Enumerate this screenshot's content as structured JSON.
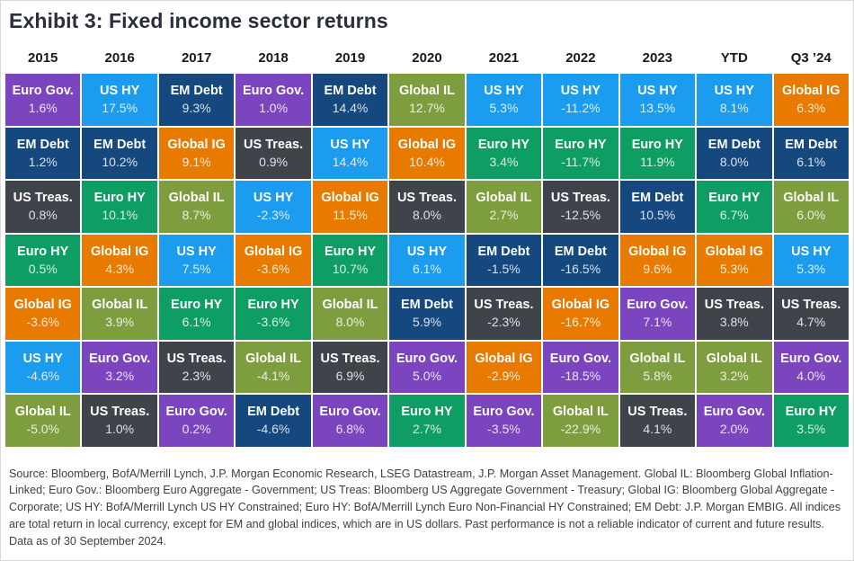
{
  "header": {
    "title": "Exhibit 3: Fixed income sector returns"
  },
  "chart_data": {
    "type": "table",
    "title": "Exhibit 3: Fixed income sector returns",
    "columns": [
      "2015",
      "2016",
      "2017",
      "2018",
      "2019",
      "2020",
      "2021",
      "2022",
      "2023",
      "YTD",
      "Q3 ’24"
    ],
    "legend": {
      "Euro Gov.": "#7a45be",
      "US HY": "#1b9cee",
      "EM Debt": "#14487f",
      "Global IL": "#7e9d3e",
      "Global IG": "#e87a00",
      "US Treas.": "#3f444a",
      "Euro HY": "#0e9e63"
    },
    "rows": [
      [
        {
          "sector": "Euro Gov.",
          "value": "1.6%"
        },
        {
          "sector": "US HY",
          "value": "17.5%"
        },
        {
          "sector": "EM Debt",
          "value": "9.3%"
        },
        {
          "sector": "Euro Gov.",
          "value": "1.0%"
        },
        {
          "sector": "EM Debt",
          "value": "14.4%"
        },
        {
          "sector": "Global IL",
          "value": "12.7%"
        },
        {
          "sector": "US HY",
          "value": "5.3%"
        },
        {
          "sector": "US HY",
          "value": "-11.2%"
        },
        {
          "sector": "US HY",
          "value": "13.5%"
        },
        {
          "sector": "US HY",
          "value": "8.1%"
        },
        {
          "sector": "Global IG",
          "value": "6.3%"
        }
      ],
      [
        {
          "sector": "EM Debt",
          "value": "1.2%"
        },
        {
          "sector": "EM Debt",
          "value": "10.2%"
        },
        {
          "sector": "Global IG",
          "value": "9.1%"
        },
        {
          "sector": "US Treas.",
          "value": "0.9%"
        },
        {
          "sector": "US HY",
          "value": "14.4%"
        },
        {
          "sector": "Global IG",
          "value": "10.4%"
        },
        {
          "sector": "Euro HY",
          "value": "3.4%"
        },
        {
          "sector": "Euro HY",
          "value": "-11.7%"
        },
        {
          "sector": "Euro HY",
          "value": "11.9%"
        },
        {
          "sector": "EM Debt",
          "value": "8.0%"
        },
        {
          "sector": "EM Debt",
          "value": "6.1%"
        }
      ],
      [
        {
          "sector": "US Treas.",
          "value": "0.8%"
        },
        {
          "sector": "Euro HY",
          "value": "10.1%"
        },
        {
          "sector": "Global IL",
          "value": "8.7%"
        },
        {
          "sector": "US HY",
          "value": "-2.3%"
        },
        {
          "sector": "Global IG",
          "value": "11.5%"
        },
        {
          "sector": "US Treas.",
          "value": "8.0%"
        },
        {
          "sector": "Global IL",
          "value": "2.7%"
        },
        {
          "sector": "US Treas.",
          "value": "-12.5%"
        },
        {
          "sector": "EM Debt",
          "value": "10.5%"
        },
        {
          "sector": "Euro HY",
          "value": "6.7%"
        },
        {
          "sector": "Global IL",
          "value": "6.0%"
        }
      ],
      [
        {
          "sector": "Euro HY",
          "value": "0.5%"
        },
        {
          "sector": "Global IG",
          "value": "4.3%"
        },
        {
          "sector": "US HY",
          "value": "7.5%"
        },
        {
          "sector": "Global IG",
          "value": "-3.6%"
        },
        {
          "sector": "Euro HY",
          "value": "10.7%"
        },
        {
          "sector": "US HY",
          "value": "6.1%"
        },
        {
          "sector": "EM Debt",
          "value": "-1.5%"
        },
        {
          "sector": "EM Debt",
          "value": "-16.5%"
        },
        {
          "sector": "Global IG",
          "value": "9.6%"
        },
        {
          "sector": "Global IG",
          "value": "5.3%"
        },
        {
          "sector": "US HY",
          "value": "5.3%"
        }
      ],
      [
        {
          "sector": "Global IG",
          "value": "-3.6%"
        },
        {
          "sector": "Global IL",
          "value": "3.9%"
        },
        {
          "sector": "Euro HY",
          "value": "6.1%"
        },
        {
          "sector": "Euro HY",
          "value": "-3.6%"
        },
        {
          "sector": "Global IL",
          "value": "8.0%"
        },
        {
          "sector": "EM Debt",
          "value": "5.9%"
        },
        {
          "sector": "US Treas.",
          "value": "-2.3%"
        },
        {
          "sector": "Global IG",
          "value": "-16.7%"
        },
        {
          "sector": "Euro Gov.",
          "value": "7.1%"
        },
        {
          "sector": "US Treas.",
          "value": "3.8%"
        },
        {
          "sector": "US Treas.",
          "value": "4.7%"
        }
      ],
      [
        {
          "sector": "US HY",
          "value": "-4.6%"
        },
        {
          "sector": "Euro Gov.",
          "value": "3.2%"
        },
        {
          "sector": "US Treas.",
          "value": "2.3%"
        },
        {
          "sector": "Global IL",
          "value": "-4.1%"
        },
        {
          "sector": "US Treas.",
          "value": "6.9%"
        },
        {
          "sector": "Euro Gov.",
          "value": "5.0%"
        },
        {
          "sector": "Global IG",
          "value": "-2.9%"
        },
        {
          "sector": "Euro Gov.",
          "value": "-18.5%"
        },
        {
          "sector": "Global IL",
          "value": "5.8%"
        },
        {
          "sector": "Global IL",
          "value": "3.2%"
        },
        {
          "sector": "Euro Gov.",
          "value": "4.0%"
        }
      ],
      [
        {
          "sector": "Global IL",
          "value": "-5.0%"
        },
        {
          "sector": "US Treas.",
          "value": "1.0%"
        },
        {
          "sector": "Euro Gov.",
          "value": "0.2%"
        },
        {
          "sector": "EM Debt",
          "value": "-4.6%"
        },
        {
          "sector": "Euro Gov.",
          "value": "6.8%"
        },
        {
          "sector": "Euro HY",
          "value": "2.7%"
        },
        {
          "sector": "Euro Gov.",
          "value": "-3.5%"
        },
        {
          "sector": "Global IL",
          "value": "-22.9%"
        },
        {
          "sector": "US Treas.",
          "value": "4.1%"
        },
        {
          "sector": "Euro Gov.",
          "value": "2.0%"
        },
        {
          "sector": "Euro HY",
          "value": "3.5%"
        }
      ]
    ]
  },
  "footer": {
    "source": "Source: Bloomberg, BofA/Merrill Lynch, J.P. Morgan Economic Research, LSEG Datastream, J.P. Morgan Asset Management. Global IL: Bloomberg Global Inflation-Linked; Euro Gov.: Bloomberg Euro Aggregate - Government; US Treas: Bloomberg US Aggregate Government - Treasury; Global IG: Bloomberg Global Aggregate - Corporate; US HY: BofA/Merrill Lynch US HY Constrained; Euro HY: BofA/Merrill Lynch Euro Non-Financial HY Constrained; EM Debt: J.P. Morgan EMBIG. All indices are total return in local currency, except for EM and global indices, which are in US dollars. Past performance is not a reliable indicator of current and future results. Data as of 30 September 2024."
  }
}
